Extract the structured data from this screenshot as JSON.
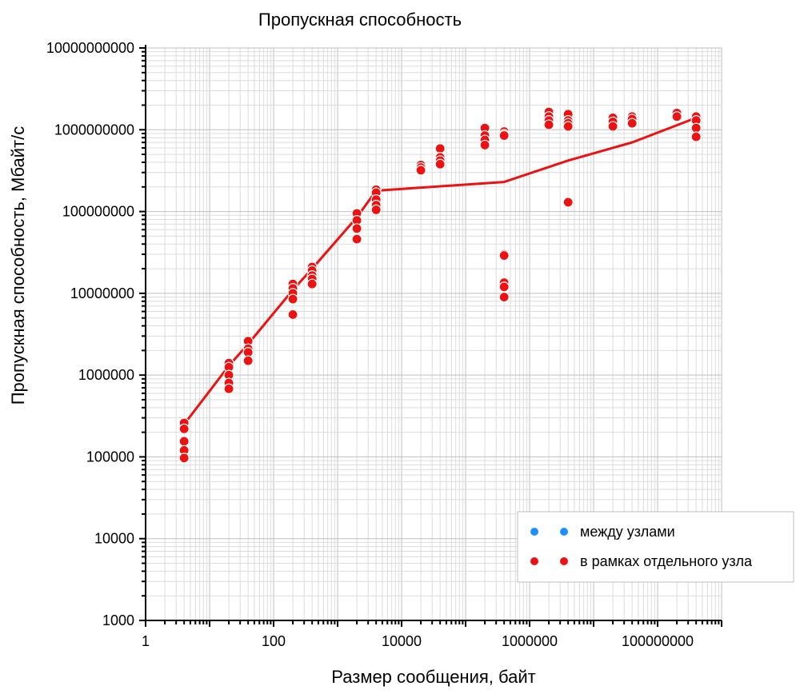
{
  "colors": {
    "series_inter": "#1e90ff",
    "series_intra": "#ee1111",
    "trend": "#ee1111",
    "grid_major": "#bfbfbf",
    "grid_minor": "#dcdcdc",
    "axis": "#000000"
  },
  "chart_data": {
    "type": "scatter",
    "title": "Пропускная способность",
    "xlabel": "Размер сообщения, байт",
    "ylabel": "Пропускная способность, Мбайт/с",
    "xscale": "log",
    "yscale": "log",
    "xlim": [
      1,
      1000000000
    ],
    "ylim": [
      1000,
      10000000000
    ],
    "x_tick_labels": [
      "1",
      "100",
      "10000",
      "1000000",
      "100000000"
    ],
    "y_tick_labels": [
      "1000",
      "10000",
      "100000",
      "1000000",
      "10000000",
      "100000000",
      "1000000000",
      "10000000000"
    ],
    "grid": true,
    "legend_position": "bottom-right",
    "series": [
      {
        "name": "между узлами",
        "color": "#1e90ff",
        "points": []
      },
      {
        "name": "в рамках отдельного узла",
        "color": "#ee1111",
        "points": [
          [
            4,
            260000
          ],
          [
            4,
            220000
          ],
          [
            4,
            155000
          ],
          [
            4,
            120000
          ],
          [
            4,
            97000
          ],
          [
            20,
            1400000
          ],
          [
            20,
            1250000
          ],
          [
            20,
            1000000
          ],
          [
            20,
            800000
          ],
          [
            20,
            680000
          ],
          [
            40,
            2600000
          ],
          [
            40,
            2100000
          ],
          [
            40,
            1900000
          ],
          [
            40,
            1500000
          ],
          [
            200,
            13000000
          ],
          [
            200,
            11500000
          ],
          [
            200,
            10000000
          ],
          [
            200,
            8500000
          ],
          [
            200,
            5500000
          ],
          [
            400,
            21000000
          ],
          [
            400,
            19000000
          ],
          [
            400,
            16500000
          ],
          [
            400,
            15000000
          ],
          [
            400,
            13000000
          ],
          [
            2000,
            95000000
          ],
          [
            2000,
            78000000
          ],
          [
            2000,
            62000000
          ],
          [
            2000,
            46000000
          ],
          [
            4000,
            185000000
          ],
          [
            4000,
            170000000
          ],
          [
            4000,
            140000000
          ],
          [
            4000,
            120000000
          ],
          [
            4000,
            105000000
          ],
          [
            20000,
            370000000
          ],
          [
            20000,
            345000000
          ],
          [
            20000,
            320000000
          ],
          [
            40000,
            590000000
          ],
          [
            40000,
            460000000
          ],
          [
            40000,
            420000000
          ],
          [
            40000,
            380000000
          ],
          [
            200000,
            1050000000
          ],
          [
            200000,
            850000000
          ],
          [
            200000,
            750000000
          ],
          [
            200000,
            650000000
          ],
          [
            400000,
            950000000
          ],
          [
            400000,
            880000000
          ],
          [
            400000,
            850000000
          ],
          [
            400000,
            30000000
          ],
          [
            400000,
            29000000
          ],
          [
            400000,
            13500000
          ],
          [
            400000,
            12000000
          ],
          [
            400000,
            9000000
          ],
          [
            2000000,
            1650000000
          ],
          [
            2000000,
            1450000000
          ],
          [
            2000000,
            1300000000
          ],
          [
            2000000,
            1150000000
          ],
          [
            4000000,
            1550000000
          ],
          [
            4000000,
            1300000000
          ],
          [
            4000000,
            1200000000
          ],
          [
            4000000,
            1100000000
          ],
          [
            4000000,
            130000000
          ],
          [
            20000000,
            1400000000
          ],
          [
            20000000,
            1250000000
          ],
          [
            20000000,
            1100000000
          ],
          [
            40000000,
            1450000000
          ],
          [
            40000000,
            1350000000
          ],
          [
            40000000,
            1200000000
          ],
          [
            200000000,
            1600000000
          ],
          [
            200000000,
            1450000000
          ],
          [
            400000000,
            1450000000
          ],
          [
            400000000,
            1300000000
          ],
          [
            400000000,
            1050000000
          ],
          [
            400000000,
            820000000
          ]
        ]
      }
    ],
    "trendline": {
      "color": "#ee1111",
      "points": [
        [
          4,
          250000
        ],
        [
          20,
          1300000
        ],
        [
          40,
          2400000
        ],
        [
          200,
          11000000
        ],
        [
          400,
          20000000
        ],
        [
          2000,
          85000000
        ],
        [
          4000,
          180000000
        ],
        [
          400000,
          230000000
        ],
        [
          4000000,
          420000000
        ],
        [
          40000000,
          700000000
        ],
        [
          400000000,
          1400000000
        ]
      ]
    }
  }
}
